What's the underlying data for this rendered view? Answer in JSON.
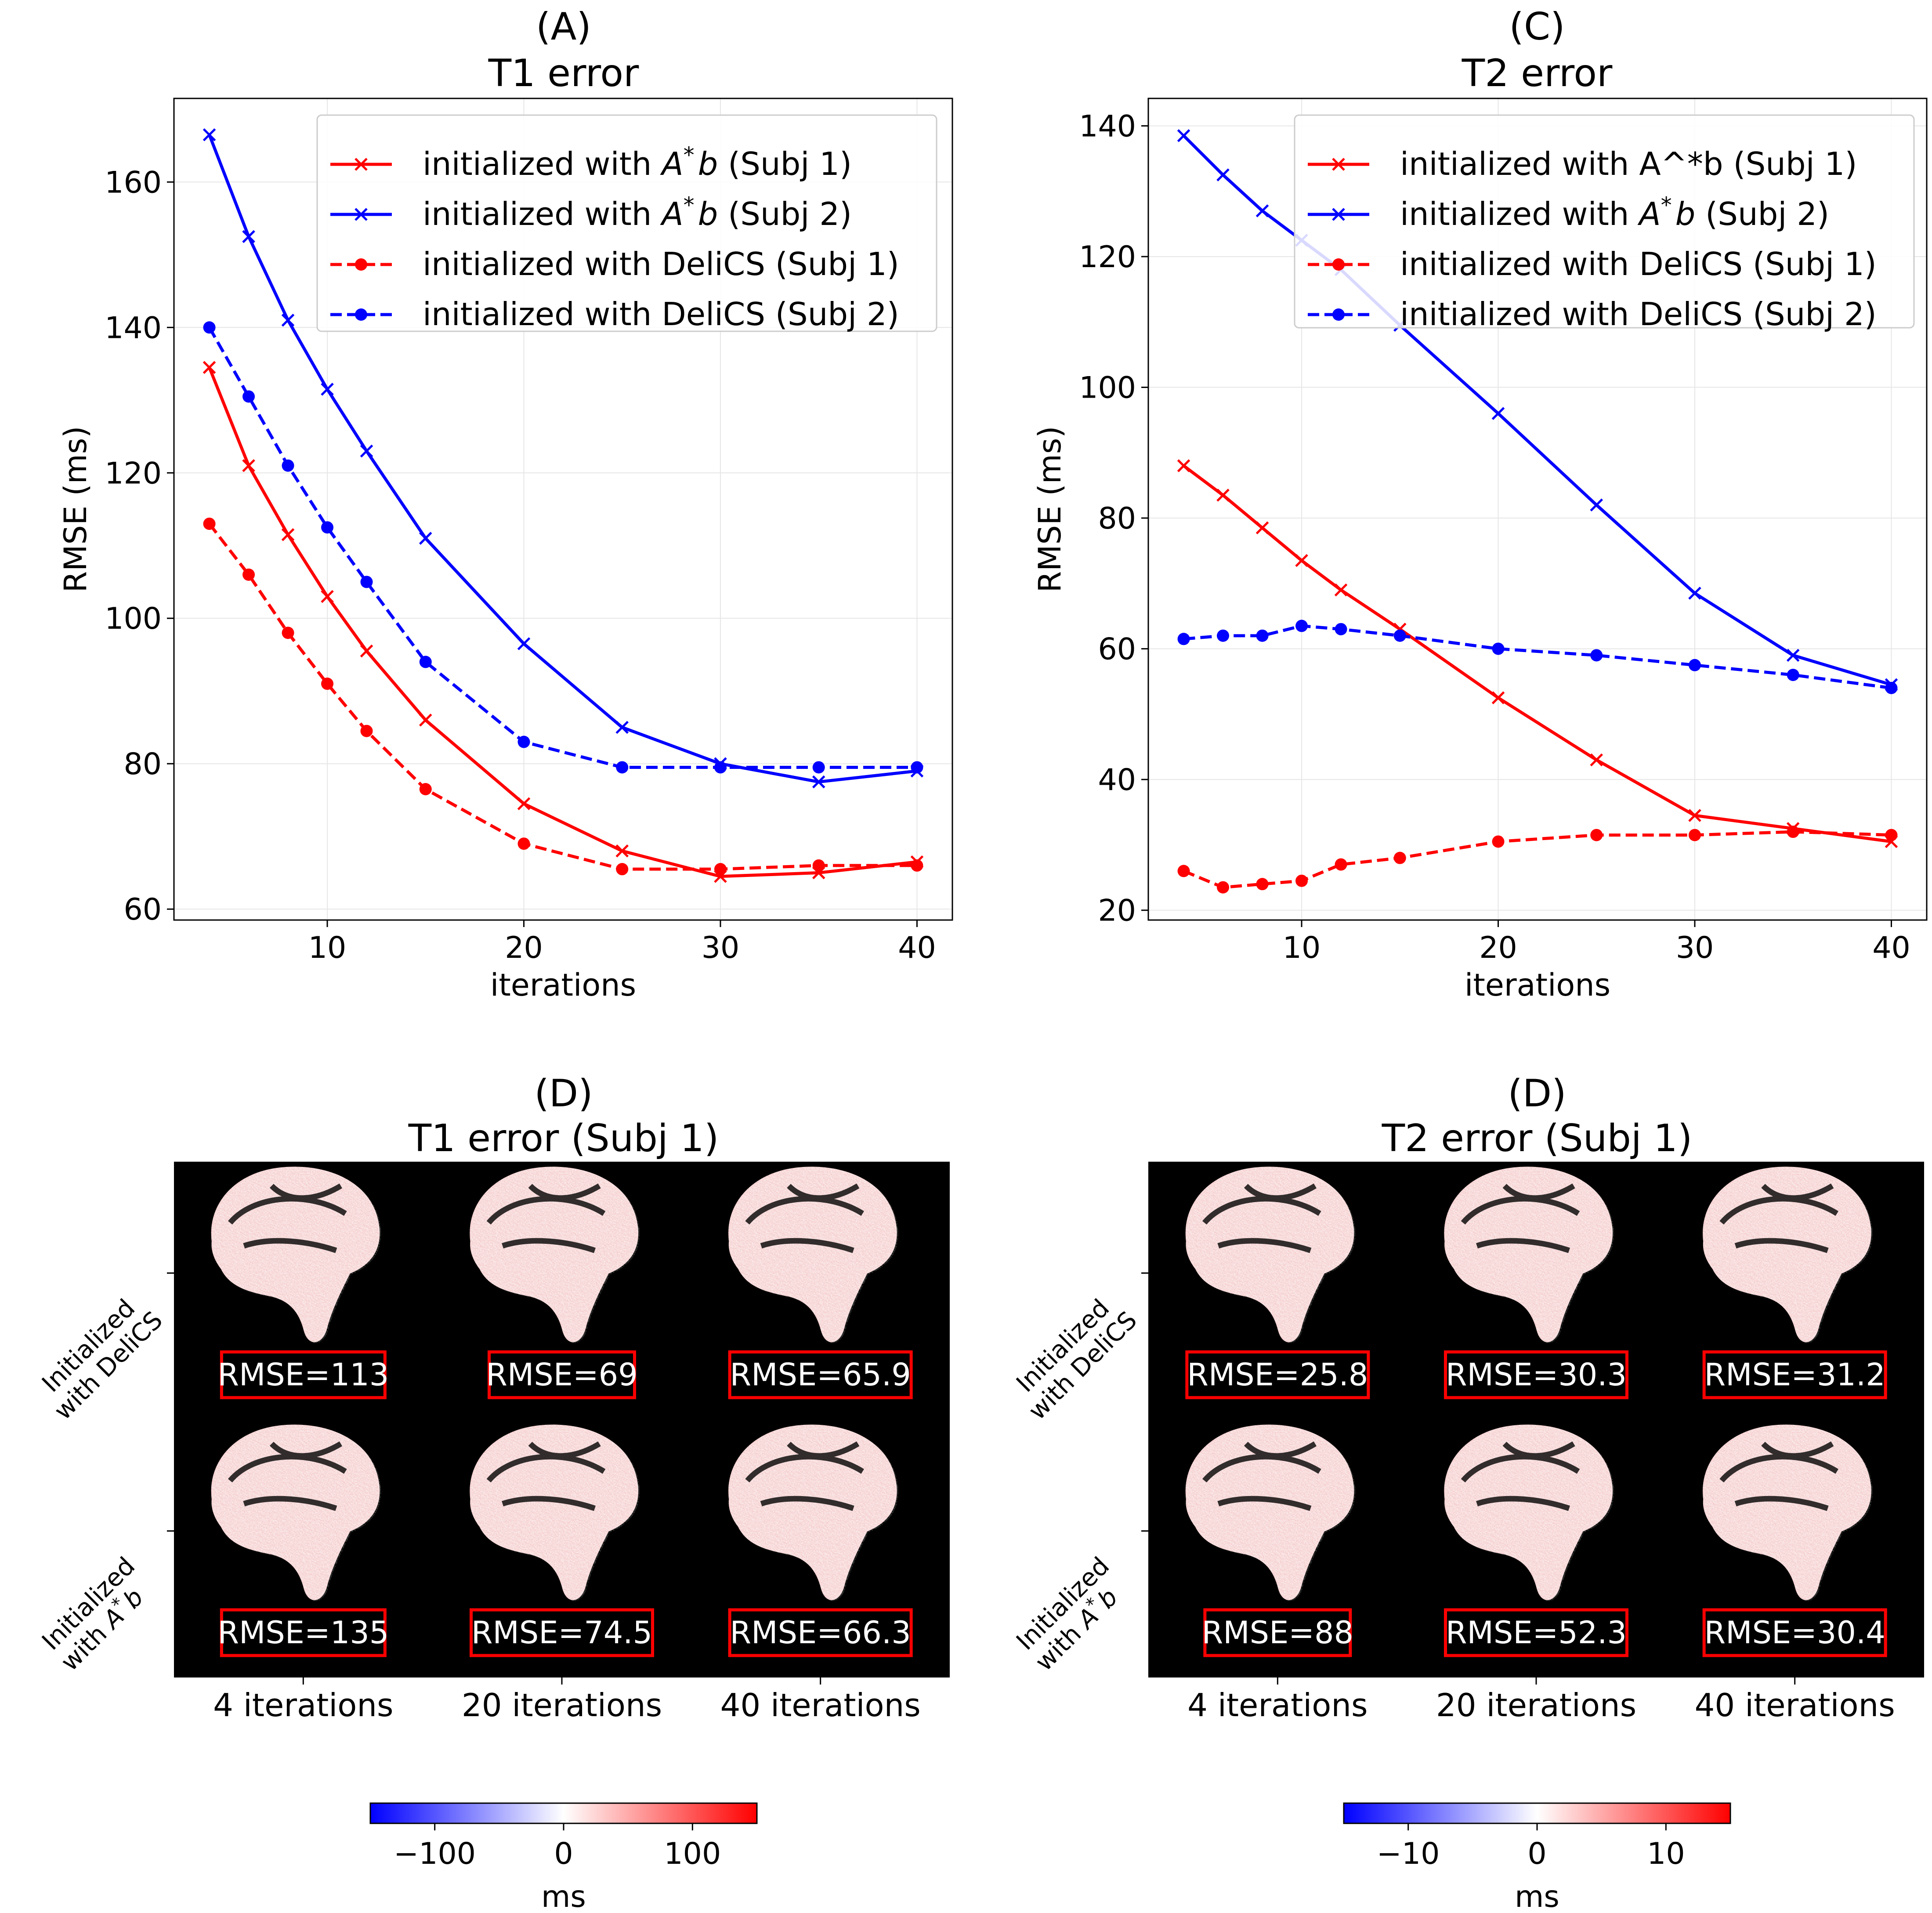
{
  "chart_data": [
    {
      "type": "line",
      "panel": "(A)",
      "title": "T1 error",
      "xlabel": "iterations",
      "ylabel": "RMSE (ms)",
      "xlim": [
        2.2,
        41.8
      ],
      "ylim": [
        58.5,
        171.5
      ],
      "xticks": [
        10,
        20,
        30,
        40
      ],
      "yticks": [
        60,
        80,
        100,
        120,
        140,
        160
      ],
      "grid": true,
      "legend_position": "top-right",
      "x": [
        4,
        6,
        8,
        10,
        12,
        15,
        20,
        25,
        30,
        35,
        40
      ],
      "series": [
        {
          "name": "initialized with A*b (Subj 1)",
          "legend_main": "initialized with ",
          "legend_A": "A",
          "legend_star": "*",
          "legend_b": "b",
          "legend_tail": " (Subj 1)",
          "color": "#ff0000",
          "dash": "solid",
          "marker": "x",
          "values": [
            134.5,
            121,
            111.5,
            103,
            95.5,
            86,
            74.5,
            68,
            64.5,
            65,
            66.5
          ]
        },
        {
          "name": "initialized with A*b (Subj 2)",
          "legend_main": "initialized with ",
          "legend_A": "A",
          "legend_star": "*",
          "legend_b": "b",
          "legend_tail": " (Subj 2)",
          "color": "#0000ff",
          "dash": "solid",
          "marker": "x",
          "values": [
            166.5,
            152.5,
            141,
            131.5,
            123,
            111,
            96.5,
            85,
            80,
            77.5,
            79
          ]
        },
        {
          "name": "initialized with DeliCS (Subj 1)",
          "legend_main": "initialized with DeliCS (Subj 1)",
          "color": "#ff0000",
          "dash": "dashed",
          "marker": "o",
          "values": [
            113,
            106,
            98,
            91,
            84.5,
            76.5,
            69,
            65.5,
            65.5,
            66,
            66
          ]
        },
        {
          "name": "initialized with DeliCS (Subj 2)",
          "legend_main": "initialized with DeliCS (Subj 2)",
          "color": "#0000ff",
          "dash": "dashed",
          "marker": "o",
          "values": [
            140,
            130.5,
            121,
            112.5,
            105,
            94,
            83,
            79.5,
            79.5,
            79.5,
            79.5
          ]
        }
      ]
    },
    {
      "type": "line",
      "panel": "(C)",
      "title": "T2 error",
      "xlabel": "iterations",
      "ylabel": "RMSE (ms)",
      "xlim": [
        2.2,
        41.8
      ],
      "ylim": [
        18.5,
        144.2
      ],
      "xticks": [
        10,
        20,
        30,
        40
      ],
      "yticks": [
        20,
        40,
        60,
        80,
        100,
        120,
        140
      ],
      "grid": true,
      "legend_position": "top-right",
      "x": [
        4,
        6,
        8,
        10,
        12,
        15,
        20,
        25,
        30,
        35,
        40
      ],
      "series": [
        {
          "name": "initialized with A^*b (Subj 1)",
          "legend_main": "initialized with A^*b (Subj 1)",
          "color": "#ff0000",
          "dash": "solid",
          "marker": "x",
          "values": [
            88,
            83.5,
            78.5,
            73.5,
            69,
            63,
            52.5,
            43,
            34.5,
            32.5,
            30.5
          ]
        },
        {
          "name": "initialized with A*b (Subj 2)",
          "legend_main": "initialized with ",
          "legend_A": "A",
          "legend_star": "*",
          "legend_b": "b",
          "legend_tail": " (Subj 2)",
          "color": "#0000ff",
          "dash": "solid",
          "marker": "x",
          "values": [
            138.5,
            132.5,
            127,
            122.5,
            118,
            109.5,
            96,
            82,
            68.5,
            59,
            54.5
          ]
        },
        {
          "name": "initialized with DeliCS (Subj 1)",
          "legend_main": "initialized with DeliCS (Subj 1)",
          "color": "#ff0000",
          "dash": "dashed",
          "marker": "o",
          "values": [
            26,
            23.5,
            24,
            24.5,
            27,
            28,
            30.5,
            31.5,
            31.5,
            32,
            31.5
          ]
        },
        {
          "name": "initialized with DeliCS (Subj 2)",
          "legend_main": "initialized with DeliCS (Subj 2)",
          "color": "#0000ff",
          "dash": "dashed",
          "marker": "o",
          "values": [
            61.5,
            62,
            62,
            63.5,
            63,
            62,
            60,
            59,
            57.5,
            56,
            54
          ]
        }
      ]
    },
    {
      "type": "heatmap",
      "panel": "(D)",
      "title": "T1 error (Subj 1)",
      "row_labels": [
        {
          "line1": "Initialized",
          "line2": "with DeliCS"
        },
        {
          "line1": "Initialized",
          "line2_pre": "with ",
          "line2_A": "A",
          "line2_star": "*",
          "line2_b": "b"
        }
      ],
      "col_labels": [
        "4 iterations",
        "20 iterations",
        "40 iterations"
      ],
      "rmse_labels": [
        [
          "RMSE=113",
          "RMSE=69",
          "RMSE=65.9"
        ],
        [
          "RMSE=135",
          "RMSE=74.5",
          "RMSE=66.3"
        ]
      ],
      "colorbar": {
        "min": -150,
        "max": 150,
        "ticks": [
          -100,
          0,
          100
        ],
        "tick_labels": [
          "−100",
          "0",
          "100"
        ],
        "label": "ms",
        "cmap": "bwr"
      }
    },
    {
      "type": "heatmap",
      "panel": "(D)",
      "title": "T2 error (Subj 1)",
      "row_labels": [
        {
          "line1": "Initialized",
          "line2": "with DeliCS"
        },
        {
          "line1": "Initialized",
          "line2_pre": "with ",
          "line2_A": "A",
          "line2_star": "*",
          "line2_b": "b"
        }
      ],
      "col_labels": [
        "4 iterations",
        "20 iterations",
        "40 iterations"
      ],
      "rmse_labels": [
        [
          "RMSE=25.8",
          "RMSE=30.3",
          "RMSE=31.2"
        ],
        [
          "RMSE=88",
          "RMSE=52.3",
          "RMSE=30.4"
        ]
      ],
      "colorbar": {
        "min": -15,
        "max": 15,
        "ticks": [
          -10,
          0,
          10
        ],
        "tick_labels": [
          "−10",
          "0",
          "10"
        ],
        "label": "ms",
        "cmap": "bwr"
      }
    }
  ]
}
